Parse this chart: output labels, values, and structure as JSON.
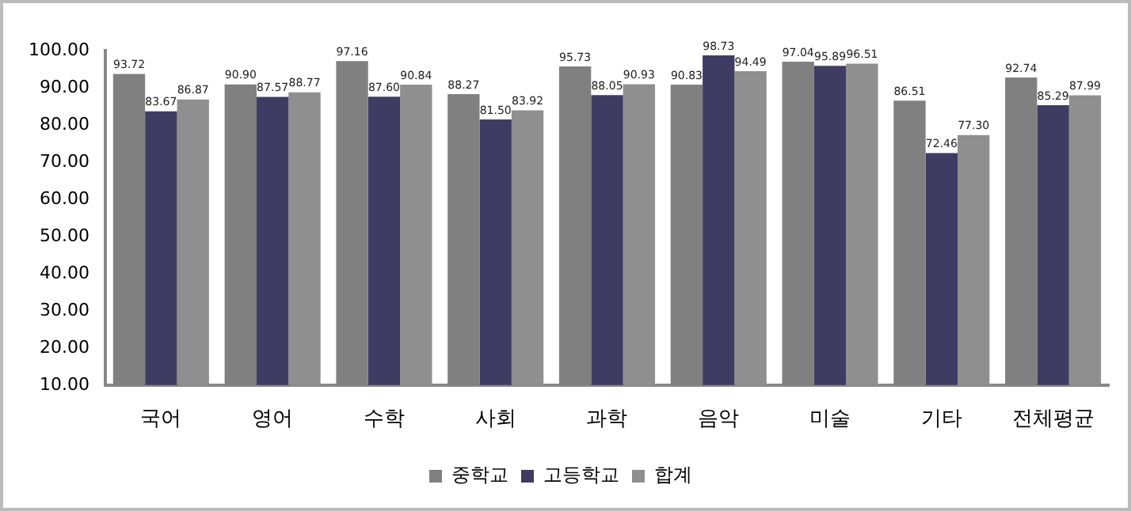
{
  "chart_data": {
    "type": "bar",
    "categories": [
      "국어",
      "영어",
      "수학",
      "사회",
      "과학",
      "음악",
      "미술",
      "기타",
      "전체평균"
    ],
    "series": [
      {
        "name": "중학교",
        "color": "#808080",
        "values": [
          93.72,
          90.9,
          97.16,
          88.27,
          95.73,
          90.83,
          97.04,
          86.51,
          92.74
        ],
        "value_labels": [
          "93.72",
          "90.90",
          "97.16",
          "88.27",
          "95.73",
          "90.83",
          "97.04",
          "86.51",
          "92.74"
        ]
      },
      {
        "name": "고등학교",
        "color": "#403b62",
        "values": [
          83.67,
          87.57,
          87.6,
          81.5,
          88.05,
          98.73,
          95.89,
          72.46,
          85.29
        ],
        "value_labels": [
          "83.67",
          "87.57",
          "87.60",
          "81.50",
          "88.05",
          "98.73",
          "95.89",
          "72.46",
          "85.29"
        ]
      },
      {
        "name": "합계",
        "color": "#8f8f8f",
        "values": [
          86.87,
          88.77,
          90.84,
          83.92,
          90.93,
          94.49,
          96.51,
          77.3,
          87.99
        ],
        "value_labels": [
          "86.87",
          "88.77",
          "90.84",
          "83.92",
          "90.93",
          "94.49",
          "96.51",
          "77.30",
          "87.99"
        ]
      }
    ],
    "ylim": [
      10,
      100
    ],
    "yticks": [
      {
        "value": 10,
        "label": "10.00"
      },
      {
        "value": 20,
        "label": "20.00"
      },
      {
        "value": 30,
        "label": "30.00"
      },
      {
        "value": 40,
        "label": "40.00"
      },
      {
        "value": 50,
        "label": "50.00"
      },
      {
        "value": 60,
        "label": "60.00"
      },
      {
        "value": 70,
        "label": "70.00"
      },
      {
        "value": 80,
        "label": "80.00"
      },
      {
        "value": 90,
        "label": "90.00"
      },
      {
        "value": 100,
        "label": "100.00"
      }
    ],
    "grid": false,
    "legend": "bottom"
  }
}
